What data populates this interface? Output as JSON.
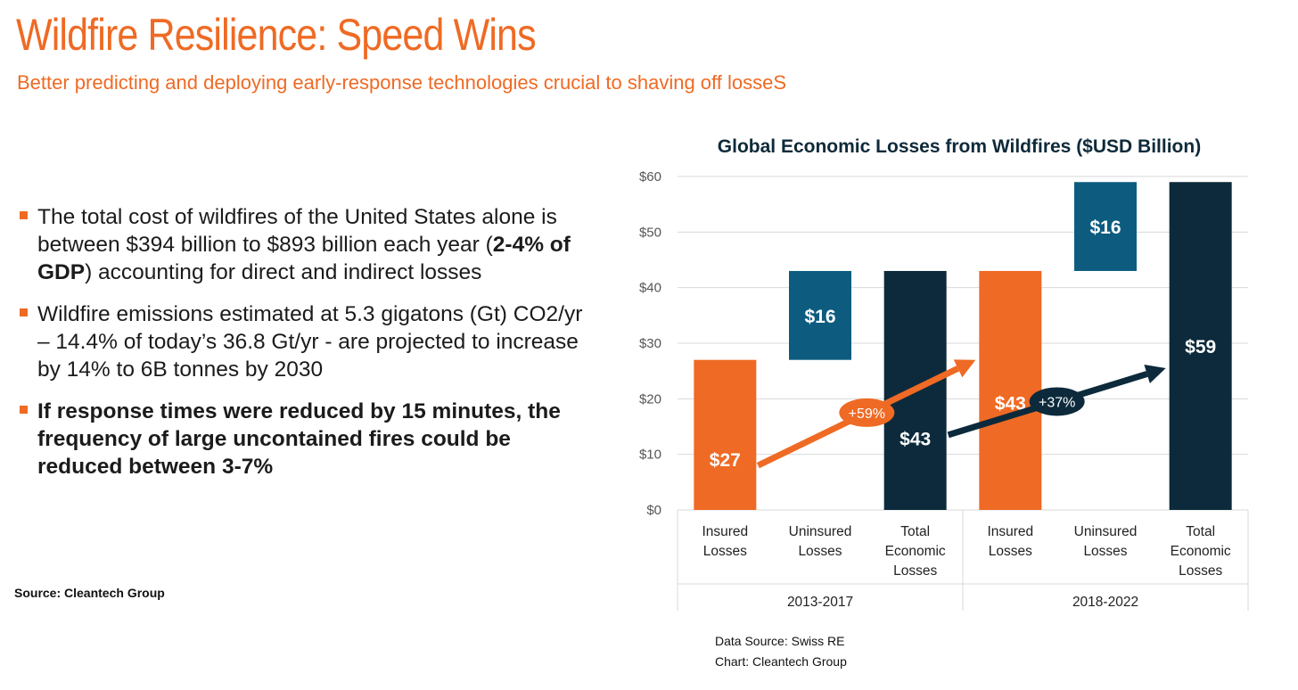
{
  "header": {
    "title": "Wildfire Resilience: Speed Wins",
    "subtitle": "Better predicting and deploying early-response technologies crucial to shaving off losseS"
  },
  "bullets": [
    {
      "pre": "The total cost of wildfires of the United States alone is between $394 billion to $893 billion each year (",
      "bold": "2-4% of GDP",
      "post": ") accounting for direct and indirect losses"
    },
    {
      "pre": "Wildfire emissions estimated at 5.3 gigatons (Gt) CO2/yr – 14.4% of today’s 36.8 Gt/yr - are projected to increase by 14% to 6B tonnes by 2030",
      "bold": "",
      "post": ""
    },
    {
      "pre": "",
      "bold": "If response times were reduced by 15 minutes, the frequency of large uncontained fires could be reduced between 3-7%",
      "post": ""
    }
  ],
  "source": "Source: Cleantech Group",
  "footer": {
    "data_source": "Data Source: Swiss RE",
    "chart_credit": "Chart: Cleantech Group"
  },
  "colors": {
    "accent": "#ef6a24",
    "insured": "#ef6a24",
    "uninsured": "#0d5c80",
    "total": "#0c2a3b",
    "grid": "#d9d9d9",
    "axis_text": "#555555"
  },
  "chart_data": {
    "type": "bar",
    "subtype": "waterfall",
    "title": "Global Economic Losses from Wildfires ($USD Billion)",
    "ylim": [
      0,
      60
    ],
    "yticks": [
      "$0",
      "$10",
      "$20",
      "$30",
      "$40",
      "$50",
      "$60"
    ],
    "grid": true,
    "groups": [
      "2013-2017",
      "2018-2022"
    ],
    "bars": [
      {
        "group": "2013-2017",
        "category": [
          "Insured",
          "Losses"
        ],
        "kind": "insured",
        "base": 0,
        "value": 27,
        "label": "$27"
      },
      {
        "group": "2013-2017",
        "category": [
          "Uninsured",
          "Losses"
        ],
        "kind": "uninsured",
        "base": 27,
        "value": 16,
        "label": "$16"
      },
      {
        "group": "2013-2017",
        "category": [
          "Total",
          "Economic",
          "Losses"
        ],
        "kind": "total",
        "base": 0,
        "value": 43,
        "label": "$43"
      },
      {
        "group": "2018-2022",
        "category": [
          "Insured",
          "Losses"
        ],
        "kind": "insured",
        "base": 0,
        "value": 43,
        "label": "$43"
      },
      {
        "group": "2018-2022",
        "category": [
          "Uninsured",
          "Losses"
        ],
        "kind": "uninsured",
        "base": 43,
        "value": 16,
        "label": "$16"
      },
      {
        "group": "2018-2022",
        "category": [
          "Total",
          "Economic",
          "Losses"
        ],
        "kind": "total",
        "base": 0,
        "value": 59,
        "label": "$59"
      }
    ],
    "annotations": [
      {
        "text": "+59%",
        "from_bar": 0,
        "to_bar": 3,
        "kind": "insured"
      },
      {
        "text": "+37%",
        "from_bar": 2,
        "to_bar": 5,
        "kind": "total"
      }
    ]
  }
}
